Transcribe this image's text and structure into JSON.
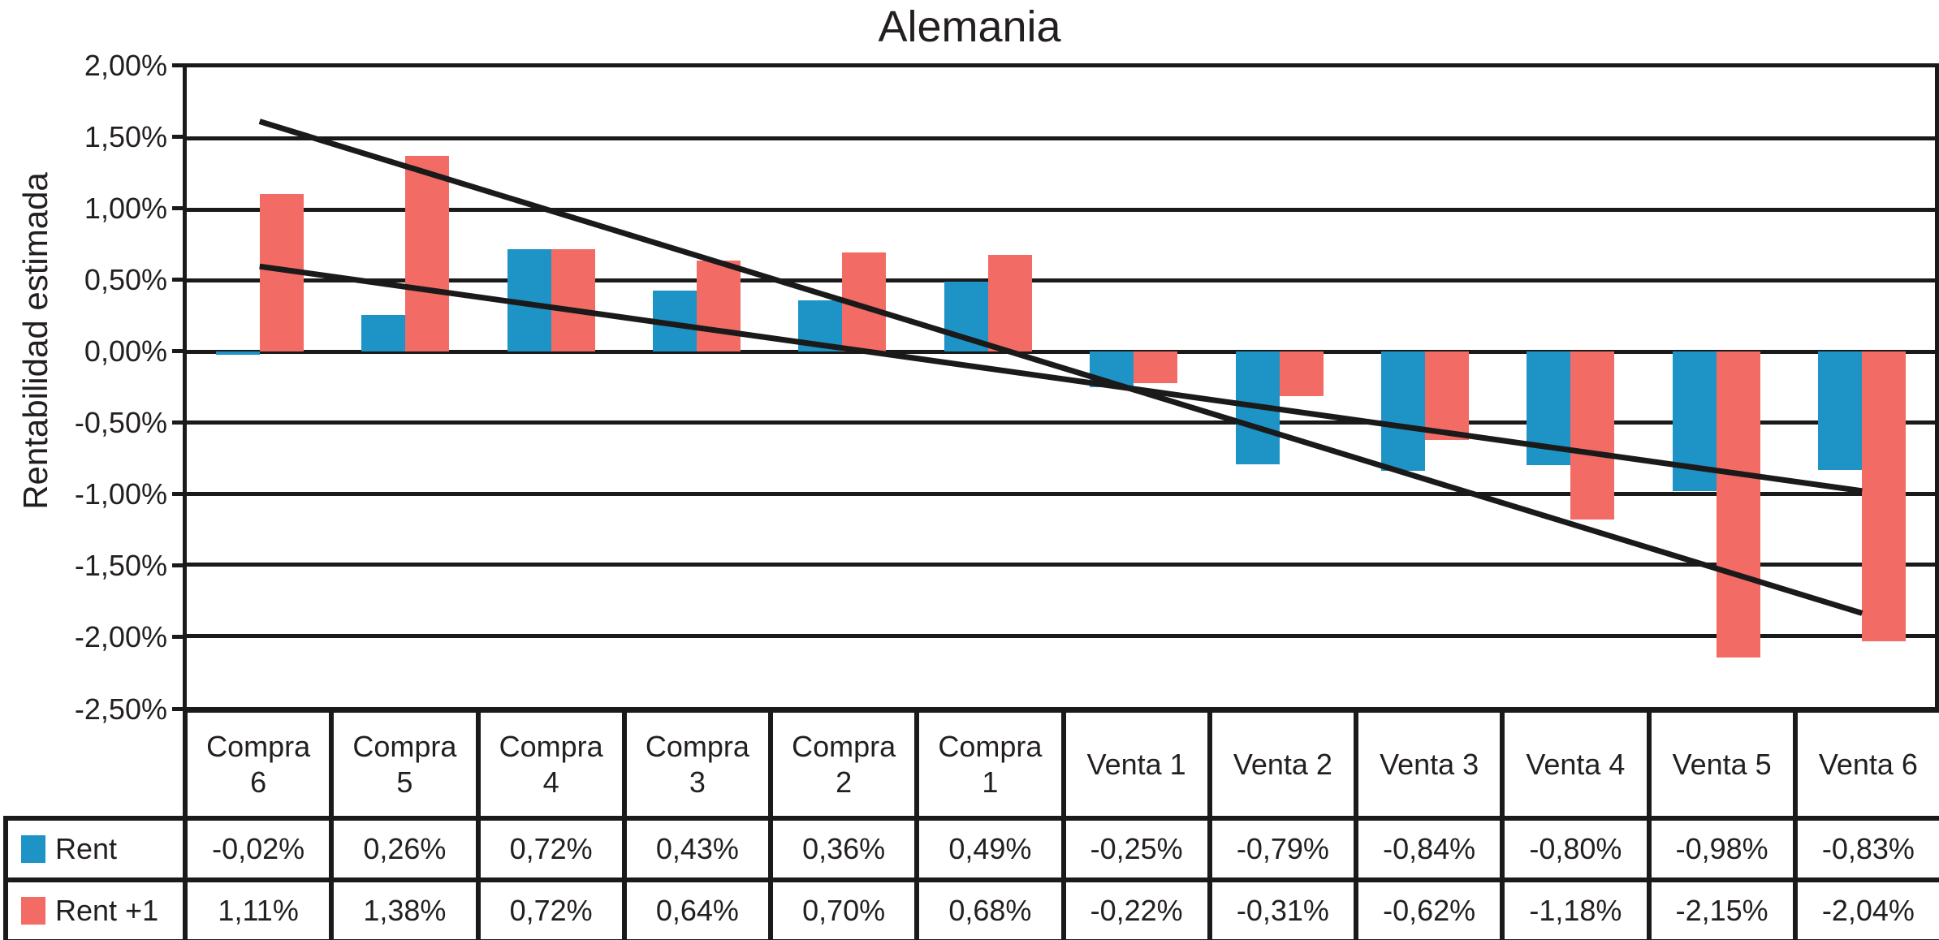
{
  "title": "Alemania",
  "chart_data": {
    "type": "bar",
    "title": "Alemania",
    "xlabel": "",
    "ylabel": "Rentabilidad estimada",
    "ylim": [
      -2.5,
      2.0
    ],
    "ytick_step": 0.5,
    "ytick_labels": [
      "2,00%",
      "1,50%",
      "1,00%",
      "0,50%",
      "0,00%",
      "-0,50%",
      "-1,00%",
      "-1,50%",
      "-2,00%",
      "-2,50%"
    ],
    "grid": "horizontal-only",
    "legend_position": "table-left",
    "categories": [
      "Compra 6",
      "Compra 5",
      "Compra 4",
      "Compra 3",
      "Compra 2",
      "Compra 1",
      "Venta 1",
      "Venta 2",
      "Venta 3",
      "Venta 4",
      "Venta 5",
      "Venta 6"
    ],
    "category_display": [
      "Compra\n6",
      "Compra\n5",
      "Compra\n4",
      "Compra\n3",
      "Compra\n2",
      "Compra\n1",
      "Venta 1",
      "Venta 2",
      "Venta 3",
      "Venta 4",
      "Venta 5",
      "Venta 6"
    ],
    "series": [
      {
        "name": "Rent",
        "color": "#1E93C6",
        "values": [
          -0.02,
          0.26,
          0.72,
          0.43,
          0.36,
          0.49,
          -0.25,
          -0.79,
          -0.84,
          -0.8,
          -0.98,
          -0.83
        ],
        "labels": [
          "-0,02%",
          "0,26%",
          "0,72%",
          "0,43%",
          "0,36%",
          "0,49%",
          "-0,25%",
          "-0,79%",
          "-0,84%",
          "-0,80%",
          "-0,98%",
          "-0,83%"
        ]
      },
      {
        "name": "Rent +1",
        "color": "#F26B64",
        "values": [
          1.11,
          1.38,
          0.72,
          0.64,
          0.7,
          0.68,
          -0.22,
          -0.31,
          -0.62,
          -1.18,
          -2.15,
          -2.04
        ],
        "labels": [
          "1,11%",
          "1,38%",
          "0,72%",
          "0,64%",
          "0,70%",
          "0,68%",
          "-0,22%",
          "-0,31%",
          "-0,62%",
          "-1,18%",
          "-2,15%",
          "-2,04%"
        ]
      }
    ],
    "trendlines": [
      {
        "series": "Rent",
        "color": "#1a1a1a",
        "start_value": 0.6,
        "end_value": -0.98
      },
      {
        "series": "Rent +1",
        "color": "#1a1a1a",
        "start_value": 1.62,
        "end_value": -1.84
      }
    ]
  }
}
